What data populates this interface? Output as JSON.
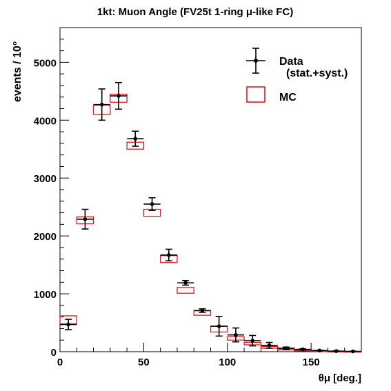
{
  "chart_data": {
    "type": "scatter",
    "title": "1kt: Muon Angle (FV25t 1-ring μ-like FC)",
    "xlabel": "θμ [deg.]",
    "ylabel": "events / 10°",
    "xlim": [
      0,
      180
    ],
    "ylim": [
      0,
      5600
    ],
    "x_ticks": [
      0,
      50,
      100,
      150
    ],
    "y_ticks": [
      0,
      1000,
      2000,
      3000,
      4000,
      5000
    ],
    "bin_width": 10,
    "grid": false,
    "legend": {
      "placement": "top-right",
      "data_label": "Data",
      "data_sublabel": "(stat.+syst.)",
      "mc_label": "MC"
    },
    "colors": {
      "data": "#000000",
      "mc": "#e8141e"
    },
    "series": [
      {
        "name": "Data",
        "x": [
          5,
          15,
          25,
          35,
          45,
          55,
          65,
          75,
          85,
          95,
          105,
          115,
          125,
          135,
          145,
          155,
          165,
          175
        ],
        "values": [
          470,
          2290,
          4270,
          4420,
          3680,
          2550,
          1670,
          1190,
          710,
          440,
          290,
          190,
          110,
          60,
          40,
          20,
          10,
          5
        ],
        "errors": [
          90,
          170,
          270,
          230,
          130,
          110,
          100,
          40,
          30,
          170,
          120,
          90,
          50,
          20,
          10,
          5,
          5,
          3
        ]
      },
      {
        "name": "MC",
        "x": [
          5,
          15,
          25,
          35,
          45,
          55,
          65,
          75,
          85,
          95,
          105,
          115,
          125,
          135,
          145,
          155,
          165,
          175
        ],
        "values": [
          550,
          2270,
          4180,
          4380,
          3560,
          2400,
          1600,
          1060,
          670,
          390,
          230,
          140,
          75,
          40,
          20,
          10,
          5,
          3
        ],
        "errors": [
          70,
          60,
          80,
          70,
          60,
          60,
          60,
          50,
          40,
          50,
          30,
          20,
          15,
          10,
          8,
          5,
          3,
          2
        ]
      }
    ]
  }
}
